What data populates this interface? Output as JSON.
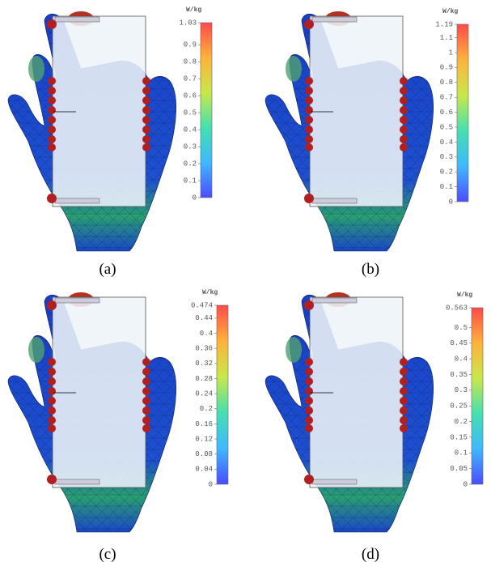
{
  "panels": [
    {
      "caption": "(a)",
      "colorbar": {
        "unit": "W/kg",
        "lim": [
          0,
          1.03
        ],
        "ticks": [
          1.03,
          0.9,
          0.8,
          0.7,
          0.6,
          0.5,
          0.4,
          0.3,
          0.2,
          0.1,
          0
        ]
      }
    },
    {
      "caption": "(b)",
      "colorbar": {
        "unit": "W/kg",
        "lim": [
          0,
          1.19
        ],
        "ticks": [
          1.19,
          1.1,
          1,
          0.9,
          0.8,
          0.7,
          0.6,
          0.5,
          0.4,
          0.3,
          0.2,
          0.1,
          0
        ]
      }
    },
    {
      "caption": "(c)",
      "colorbar": {
        "unit": "W/kg",
        "lim": [
          0,
          0.474
        ],
        "ticks": [
          0.474,
          0.44,
          0.4,
          0.36,
          0.32,
          0.28,
          0.24,
          0.2,
          0.16,
          0.12,
          0.08,
          0.04,
          0
        ]
      }
    },
    {
      "caption": "(d)",
      "colorbar": {
        "unit": "W/kg",
        "lim": [
          0,
          0.563
        ],
        "ticks": [
          0.563,
          0.5,
          0.45,
          0.4,
          0.35,
          0.3,
          0.25,
          0.2,
          0.15,
          0.1,
          0.05,
          0
        ]
      }
    }
  ]
}
